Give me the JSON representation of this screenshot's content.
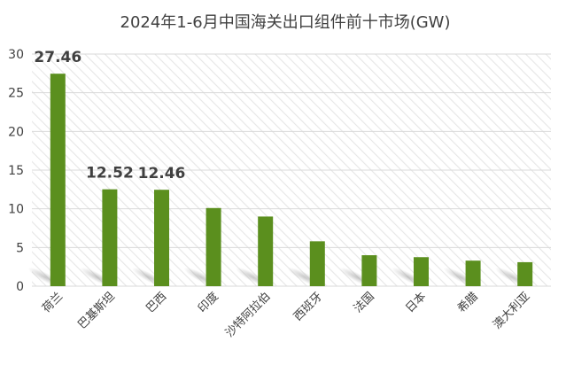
{
  "chart_data": {
    "type": "bar",
    "title": "2024年1-6月中国海关出口组件前十市场(GW)",
    "xlabel": "",
    "ylabel": "",
    "ylim": [
      0,
      30
    ],
    "yticks": [
      0,
      5,
      10,
      15,
      20,
      25,
      30
    ],
    "grid": true,
    "legend": "none",
    "categories": [
      "荷兰",
      "巴基斯坦",
      "巴西",
      "印度",
      "沙特阿拉伯",
      "西班牙",
      "法国",
      "日本",
      "希腊",
      "澳大利亚"
    ],
    "values": [
      27.46,
      12.52,
      12.46,
      10.1,
      9.0,
      5.8,
      4.0,
      3.75,
      3.3,
      3.1
    ],
    "data_labels": [
      "27.46",
      "12.52",
      "12.46",
      null,
      null,
      null,
      null,
      null,
      null,
      null
    ],
    "colors": {
      "bar": "#5b8f1e",
      "grid": "#d9d9d9",
      "plot_hatch": "#e6e6e6",
      "text": "#404040"
    }
  }
}
